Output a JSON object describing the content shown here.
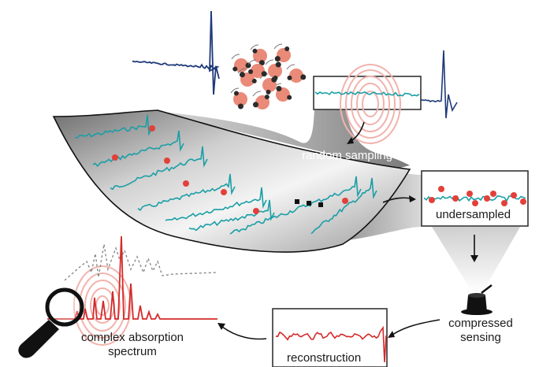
{
  "labels": {
    "random_sampling": "random sampling",
    "undersampled": "undersampled",
    "compressed_line1": "compressed",
    "compressed_line2": "sensing",
    "reconstruction": "reconstruction",
    "spectrum_line1": "complex absorption",
    "spectrum_line2": "spectrum",
    "ellipsis": "..."
  },
  "colors": {
    "wave_blue": "#1f3a78",
    "teal": "#1a9fa6",
    "red_dot": "#e3403a",
    "fingerprint": "#f2b3ad",
    "reconstruction_red": "#d42a2a",
    "sheet_dark": "#8a8a8a",
    "sheet_light": "#f2f2f2",
    "molecule_pink": "#ea8a78",
    "molecule_dark": "#2b2b2b"
  }
}
